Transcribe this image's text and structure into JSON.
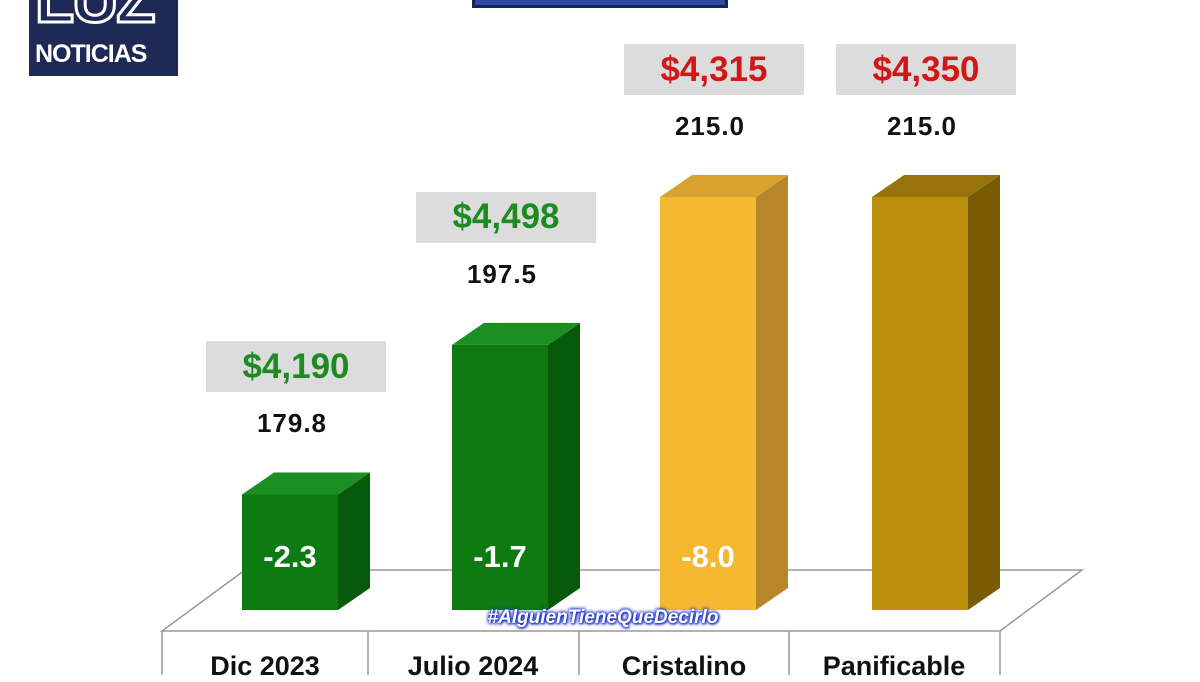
{
  "logo": {
    "big": "LUZ",
    "small": "NOTICIAS"
  },
  "hashtag": "#AlguienTieneQueDecirlo",
  "colors": {
    "green_front": "#0d7a12",
    "green_side": "#075a0b",
    "green_top": "#1c8f22",
    "yellow_front": "#f5b630",
    "yellow_side": "#b8862a",
    "yellow_top": "#d9a22e",
    "gold_front": "#bd8e0c",
    "gold_side": "#7a5b05",
    "gold_top": "#98730c",
    "price_green": "#1e8a22",
    "price_red": "#d01818",
    "price_box_bg": "#dcdcdc"
  },
  "chart_data": {
    "type": "bar",
    "categories": [
      "Dic 2023",
      "Julio 2024",
      "Cristalino",
      "Panificable"
    ],
    "values": [
      179.8,
      197.5,
      215.0,
      215.0
    ],
    "value_labels": [
      "179.8",
      "197.5",
      "215.0",
      "215.0"
    ],
    "price_labels": [
      "$4,190",
      "$4,498",
      "$4,315",
      "$4,350"
    ],
    "price_colors": [
      "green",
      "green",
      "red",
      "red"
    ],
    "inner_labels": [
      "-2.3",
      "-1.7",
      "-8.0",
      ""
    ],
    "bar_colors": [
      "green",
      "green",
      "yellow",
      "gold"
    ],
    "grid": false,
    "legend": "none"
  }
}
